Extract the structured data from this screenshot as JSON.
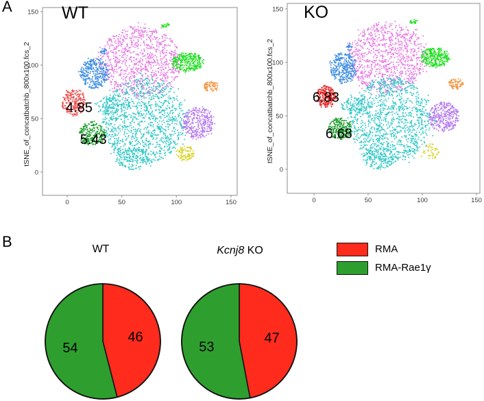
{
  "figure": {
    "panel_a_label": "A",
    "panel_b_label": "B"
  },
  "legend": [
    {
      "label": "RMA",
      "color": "#ff2b1c"
    },
    {
      "label": "RMA-Rae1γ",
      "color": "#2e9f2e"
    }
  ],
  "chart_data": [
    {
      "type": "scatter",
      "title": "WT",
      "ylabel": "tSNE_of_concatbatchb_800x100.fcs_2",
      "xlabel": "",
      "xlim": [
        -22,
        155
      ],
      "ylim": [
        -22,
        154
      ],
      "xticks": [
        0,
        50,
        100,
        150
      ],
      "yticks": [
        0,
        50,
        100,
        150
      ],
      "annotations": [
        {
          "text": "4.85",
          "x": 11,
          "y": 60
        },
        {
          "text": "5.43",
          "x": 24,
          "y": 30
        }
      ],
      "clusters": [
        {
          "color": "#e77ee4",
          "x": 67,
          "y": 103,
          "spread_x": 37,
          "spread_y": 33,
          "count": 1000
        },
        {
          "color": "#35c8c8",
          "x": 70,
          "y": 48,
          "spread_x": 38,
          "spread_y": 40,
          "count": 1150
        },
        {
          "color": "#35c8c8",
          "x": 60,
          "y": 13,
          "spread_x": 15,
          "spread_y": 11,
          "count": 150
        },
        {
          "color": "#35c8c8",
          "x": 38,
          "y": 62,
          "spread_x": 13,
          "spread_y": 8,
          "count": 110
        },
        {
          "color": "#3f8fe4",
          "x": 25,
          "y": 92,
          "spread_x": 13,
          "spread_y": 14,
          "count": 320
        },
        {
          "color": "#f04b4b",
          "x": 6,
          "y": 65,
          "spread_x": 11,
          "spread_y": 12,
          "count": 230
        },
        {
          "color": "#1c9c2b",
          "x": 23,
          "y": 36,
          "spread_x": 12,
          "spread_y": 11,
          "count": 230
        },
        {
          "color": "#1ee01e",
          "x": 110,
          "y": 103,
          "spread_x": 14,
          "spread_y": 9,
          "count": 270
        },
        {
          "color": "#f5923c",
          "x": 132,
          "y": 80,
          "spread_x": 7,
          "spread_y": 5,
          "count": 70
        },
        {
          "color": "#b67cf0",
          "x": 120,
          "y": 46,
          "spread_x": 14,
          "spread_y": 15,
          "count": 320
        },
        {
          "color": "#d8d21c",
          "x": 108,
          "y": 18,
          "spread_x": 8,
          "spread_y": 7,
          "count": 90
        },
        {
          "color": "#3f8fe4",
          "x": 33,
          "y": 113,
          "spread_x": 3,
          "spread_y": 3,
          "count": 25
        },
        {
          "color": "#1ee01e",
          "x": 90,
          "y": 137,
          "spread_x": 4,
          "spread_y": 2,
          "count": 20
        }
      ]
    },
    {
      "type": "scatter",
      "title": "KO",
      "ylabel": "tSNE_of_concatbatchb_800x100.fcs_2",
      "xlabel": "",
      "xlim": [
        -25,
        153
      ],
      "ylim": [
        -22,
        156
      ],
      "xticks": [
        0,
        50,
        100,
        150
      ],
      "yticks": [
        0,
        50,
        100,
        150
      ],
      "annotations": [
        {
          "text": "6.83",
          "x": 11,
          "y": 67
        },
        {
          "text": "6.68",
          "x": 23,
          "y": 33
        }
      ],
      "clusters": [
        {
          "color": "#e77ee4",
          "x": 68,
          "y": 104,
          "spread_x": 36,
          "spread_y": 33,
          "count": 1000
        },
        {
          "color": "#35c8c8",
          "x": 70,
          "y": 46,
          "spread_x": 38,
          "spread_y": 40,
          "count": 1150
        },
        {
          "color": "#35c8c8",
          "x": 60,
          "y": 11,
          "spread_x": 15,
          "spread_y": 11,
          "count": 150
        },
        {
          "color": "#35c8c8",
          "x": 38,
          "y": 60,
          "spread_x": 13,
          "spread_y": 8,
          "count": 110
        },
        {
          "color": "#3f8fe4",
          "x": 27,
          "y": 95,
          "spread_x": 12,
          "spread_y": 14,
          "count": 320
        },
        {
          "color": "#e82020",
          "x": 11,
          "y": 68,
          "spread_x": 9,
          "spread_y": 10,
          "count": 230
        },
        {
          "color": "#1c9c2b",
          "x": 24,
          "y": 38,
          "spread_x": 11,
          "spread_y": 10,
          "count": 230
        },
        {
          "color": "#1ee01e",
          "x": 112,
          "y": 105,
          "spread_x": 13,
          "spread_y": 9,
          "count": 270
        },
        {
          "color": "#f5923c",
          "x": 131,
          "y": 80,
          "spread_x": 7,
          "spread_y": 5,
          "count": 70
        },
        {
          "color": "#b67cf0",
          "x": 120,
          "y": 49,
          "spread_x": 14,
          "spread_y": 14,
          "count": 320
        },
        {
          "color": "#d8d21c",
          "x": 107,
          "y": 16,
          "spread_x": 9,
          "spread_y": 8,
          "count": 40
        },
        {
          "color": "#3f8fe4",
          "x": 33,
          "y": 114,
          "spread_x": 3,
          "spread_y": 3,
          "count": 20
        },
        {
          "color": "#1ee01e",
          "x": 92,
          "y": 138,
          "spread_x": 4,
          "spread_y": 2,
          "count": 20
        }
      ]
    },
    {
      "type": "pie",
      "title": "WT",
      "values": [
        46,
        54
      ],
      "start": "top",
      "direction": "clockwise"
    },
    {
      "type": "pie",
      "title_italic": "Kcnj8",
      "title_plain": "KO",
      "values": [
        47,
        53
      ],
      "start": "top",
      "direction": "clockwise"
    }
  ]
}
